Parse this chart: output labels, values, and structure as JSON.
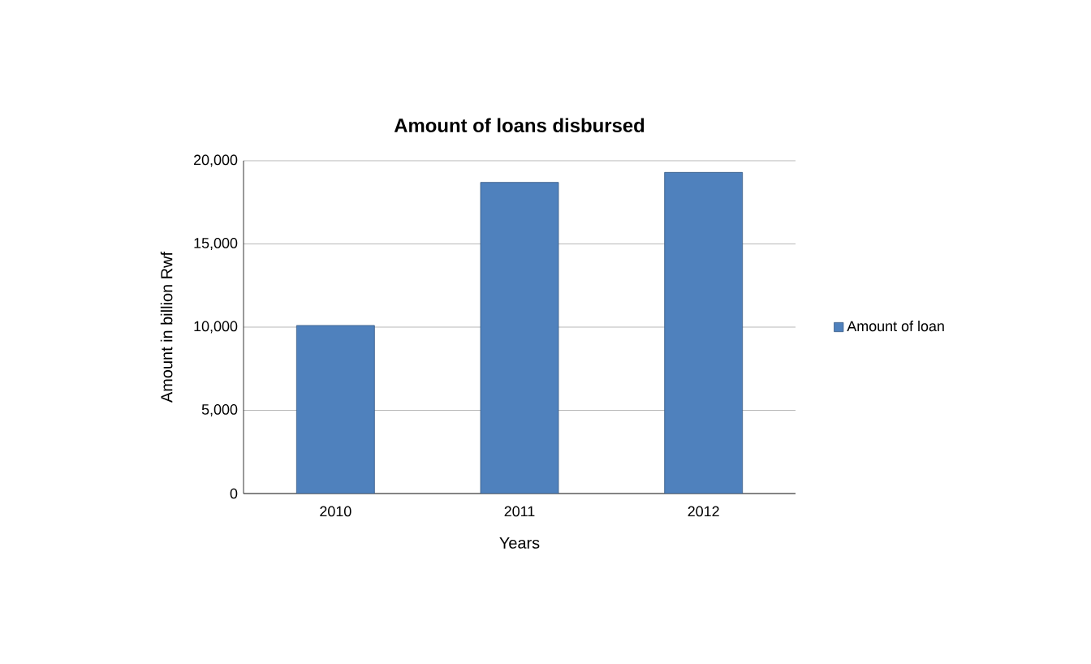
{
  "chart_data": {
    "type": "bar",
    "title": "Amount of loans disbursed",
    "xlabel": "Years",
    "ylabel": "Amount in billion Rwf",
    "categories": [
      "2010",
      "2011",
      "2012"
    ],
    "series": [
      {
        "name": "Amount of loan",
        "color": "#4f81bd",
        "values": [
          10100,
          18700,
          19300
        ]
      }
    ],
    "ylim": [
      0,
      20000
    ],
    "yticks": [
      {
        "value": 0,
        "label": "0"
      },
      {
        "value": 5000,
        "label": "5,000"
      },
      {
        "value": 10000,
        "label": "10,000"
      },
      {
        "value": 15000,
        "label": "15,000"
      },
      {
        "value": 20000,
        "label": "20,000"
      }
    ],
    "grid": "y",
    "legend": "right"
  }
}
